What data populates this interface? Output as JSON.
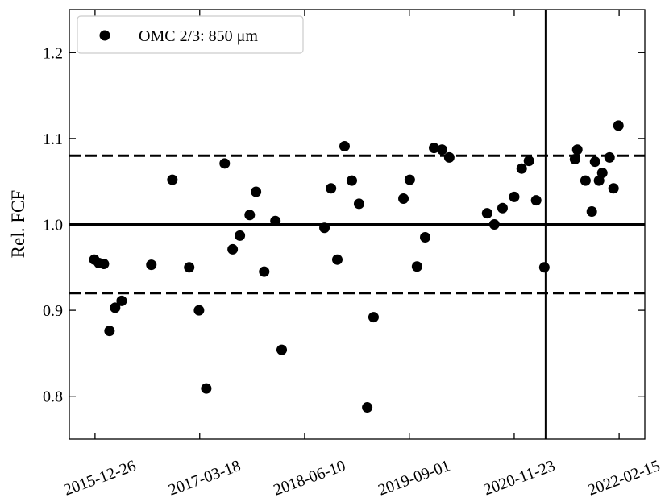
{
  "chart_data": {
    "type": "scatter",
    "ylabel": "Rel. FCF",
    "series": [
      {
        "name": "OMC 2/3: 850 μm",
        "color": "#000000",
        "x": [
          "2015-12-23",
          "2016-01-12",
          "2016-02-02",
          "2016-02-26",
          "2016-03-21",
          "2016-04-18",
          "2016-08-23",
          "2016-11-21",
          "2017-02-01",
          "2017-03-15",
          "2017-04-15",
          "2017-07-03",
          "2017-08-06",
          "2017-09-06",
          "2017-10-18",
          "2017-11-14",
          "2017-12-19",
          "2018-02-05",
          "2018-03-04",
          "2018-09-03",
          "2018-10-01",
          "2018-10-28",
          "2018-11-28",
          "2018-12-29",
          "2019-01-29",
          "2019-03-05",
          "2019-04-01",
          "2019-08-07",
          "2019-09-03",
          "2019-10-04",
          "2019-11-08",
          "2019-12-16",
          "2020-01-19",
          "2020-02-19",
          "2020-07-30",
          "2020-08-30",
          "2020-10-04",
          "2020-11-23",
          "2020-12-25",
          "2021-01-25",
          "2021-02-25",
          "2021-04-01",
          "2021-08-10",
          "2021-08-20",
          "2021-09-24",
          "2021-10-21",
          "2021-11-04",
          "2021-11-21",
          "2021-12-05",
          "2022-01-05",
          "2022-01-22",
          "2022-02-12"
        ],
        "values": [
          0.959,
          0.955,
          0.954,
          0.876,
          0.903,
          0.911,
          0.953,
          1.052,
          0.95,
          0.9,
          0.809,
          1.071,
          0.971,
          0.987,
          1.011,
          1.038,
          0.945,
          1.004,
          0.854,
          0.996,
          1.042,
          0.959,
          1.091,
          1.051,
          1.024,
          0.787,
          0.892,
          1.03,
          1.052,
          0.951,
          0.985,
          1.089,
          1.087,
          1.078,
          1.013,
          1.0,
          1.019,
          1.032,
          1.065,
          1.074,
          1.028,
          0.95,
          1.076,
          1.087,
          1.051,
          1.015,
          1.073,
          1.051,
          1.06,
          1.078,
          1.042,
          1.115
        ]
      }
    ],
    "xlim": [
      "2015-09-07",
      "2022-06-05"
    ],
    "xticks": [
      "2015-12-26",
      "2017-03-18",
      "2018-06-10",
      "2019-09-01",
      "2020-11-23",
      "2022-02-15"
    ],
    "ylim": [
      0.75,
      1.25
    ],
    "yticks": [
      0.8,
      0.9,
      {
        "value": 1,
        "label": "1.0"
      },
      1.1,
      1.2
    ],
    "hlines": [
      {
        "value": 1,
        "style": "solid"
      },
      {
        "value": 1.08,
        "style": "dashed"
      },
      {
        "value": 0.92,
        "style": "dashed"
      }
    ],
    "vlines": [
      "2021-04-08"
    ],
    "legend": "upper left"
  }
}
